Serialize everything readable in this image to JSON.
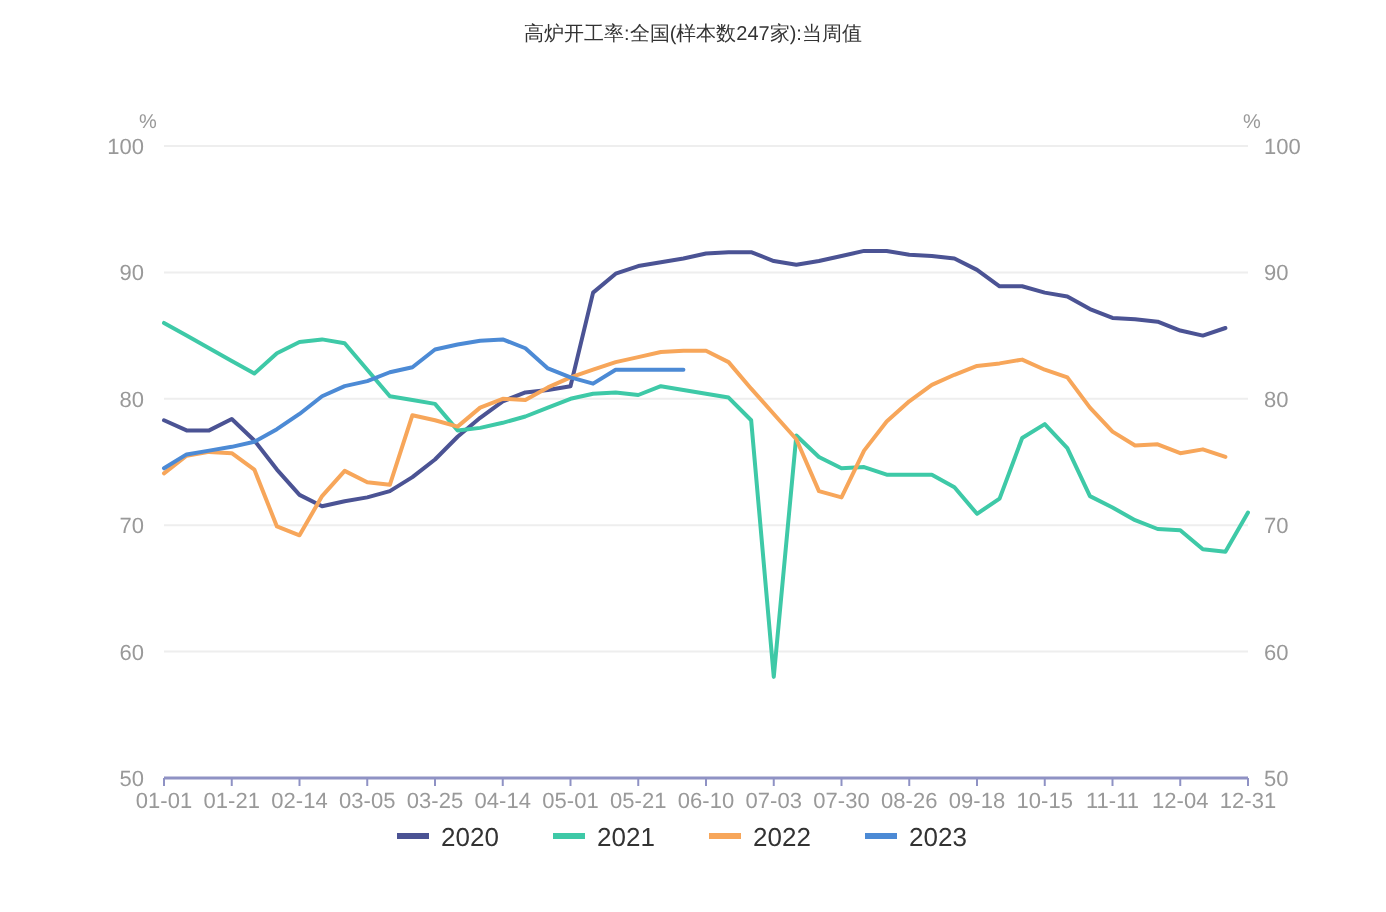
{
  "chart_data": {
    "type": "line",
    "title": "高炉开工率:全国(样本数247家):当周值",
    "ylabel": "%",
    "y2label": "%",
    "categories": [
      "01-01",
      null,
      null,
      "01-21",
      null,
      null,
      "02-14",
      null,
      null,
      "03-05",
      null,
      null,
      "03-25",
      null,
      null,
      "04-14",
      null,
      null,
      "05-01",
      null,
      null,
      "05-21",
      null,
      null,
      "06-10",
      null,
      null,
      "07-03",
      null,
      null,
      "07-30",
      null,
      null,
      "08-26",
      null,
      null,
      "09-18",
      null,
      null,
      "10-15",
      null,
      null,
      "11-11",
      null,
      null,
      "12-04",
      null,
      null,
      "12-31"
    ],
    "ylim": [
      50,
      100
    ],
    "yticks": [
      50,
      60,
      70,
      80,
      90,
      100
    ],
    "y2lim": [
      50,
      100
    ],
    "y2ticks": [
      50,
      60,
      70,
      80,
      90,
      100
    ],
    "grid": "y",
    "legend": "bottom",
    "line_style": "solid",
    "series": [
      {
        "name": "2020",
        "color": "#4b5394",
        "values": [
          78.3,
          77.5,
          77.5,
          78.4,
          76.7,
          74.4,
          72.4,
          71.5,
          71.9,
          72.2,
          72.7,
          73.8,
          75.2,
          77.0,
          78.5,
          79.8,
          80.5,
          80.7,
          81.0,
          88.4,
          89.9,
          90.5,
          90.8,
          91.1,
          91.5,
          91.6,
          91.6,
          90.9,
          90.6,
          90.9,
          91.3,
          91.7,
          91.7,
          91.4,
          91.3,
          91.1,
          90.2,
          88.9,
          88.9,
          88.4,
          88.1,
          87.1,
          86.4,
          86.3,
          86.1,
          85.4,
          85.0,
          85.6,
          null
        ]
      },
      {
        "name": "2021",
        "color": "#3ec9a7",
        "values": [
          86,
          85,
          84,
          83,
          82,
          83.6,
          84.5,
          84.7,
          84.4,
          82.3,
          80.2,
          79.9,
          79.6,
          77.5,
          77.7,
          78.1,
          78.6,
          79.3,
          80.0,
          80.4,
          80.5,
          80.3,
          81.0,
          80.7,
          80.4,
          80.1,
          78.3,
          58,
          77.1,
          75.4,
          74.5,
          74.6,
          74.0,
          74.0,
          74.0,
          73.0,
          70.9,
          72.1,
          76.9,
          78.0,
          76.1,
          72.3,
          71.4,
          70.4,
          69.7,
          69.6,
          68.1,
          67.9,
          71.0
        ]
      },
      {
        "name": "2022",
        "color": "#f7a65a",
        "values": [
          74.1,
          75.5,
          75.8,
          75.7,
          74.4,
          69.9,
          69.2,
          72.3,
          74.3,
          73.4,
          73.2,
          78.7,
          78.3,
          77.8,
          79.3,
          80.0,
          79.9,
          80.9,
          81.7,
          82.3,
          82.9,
          83.3,
          83.7,
          83.8,
          83.8,
          82.9,
          80.8,
          78.8,
          76.8,
          72.7,
          72.2,
          75.9,
          78.2,
          79.8,
          81.1,
          81.9,
          82.6,
          82.8,
          83.1,
          82.3,
          81.7,
          79.3,
          77.4,
          76.3,
          76.4,
          75.7,
          76.0,
          75.4,
          null
        ]
      },
      {
        "name": "2023",
        "color": "#4c8ad5",
        "values": [
          74.5,
          75.6,
          75.9,
          76.2,
          76.6,
          77.6,
          78.8,
          80.2,
          81.0,
          81.4,
          82.1,
          82.5,
          83.9,
          84.3,
          84.6,
          84.7,
          84.0,
          82.4,
          81.7,
          81.2,
          82.3,
          82.3,
          82.3,
          82.3,
          null,
          null,
          null,
          null,
          null,
          null,
          null,
          null,
          null,
          null,
          null,
          null,
          null,
          null,
          null,
          null,
          null,
          null,
          null,
          null,
          null,
          null,
          null,
          null,
          null
        ]
      }
    ]
  }
}
